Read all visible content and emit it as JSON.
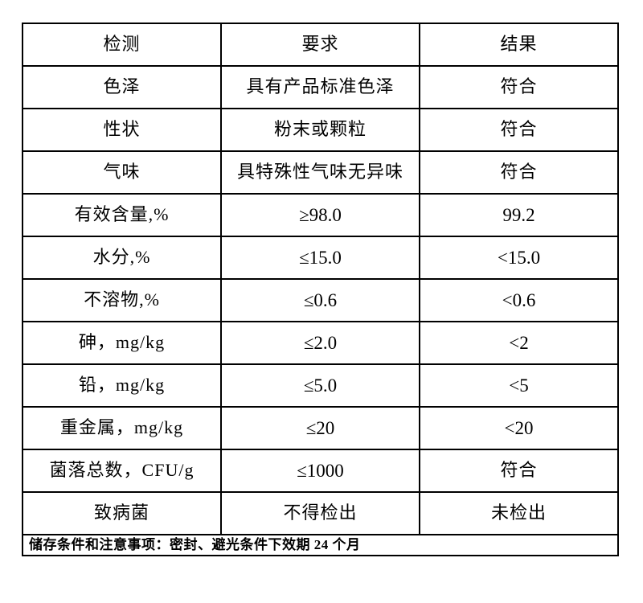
{
  "table": {
    "headers": [
      "检测",
      "要求",
      "结果"
    ],
    "rows": [
      {
        "test": "色泽",
        "requirement": "具有产品标准色泽",
        "result": "符合"
      },
      {
        "test": "性状",
        "requirement": "粉末或颗粒",
        "result": "符合"
      },
      {
        "test": "气味",
        "requirement": "具特殊性气味无异味",
        "result": "符合"
      },
      {
        "test": "有效含量,%",
        "requirement": "≥98.0",
        "result": "99.2"
      },
      {
        "test": "水分,%",
        "requirement": "≤15.0",
        "result": "<15.0"
      },
      {
        "test": "不溶物,%",
        "requirement": "≤0.6",
        "result": "<0.6"
      },
      {
        "test": "砷，mg/kg",
        "requirement": "≤2.0",
        "result": "<2"
      },
      {
        "test": "铅，mg/kg",
        "requirement": "≤5.0",
        "result": "<5"
      },
      {
        "test": "重金属，mg/kg",
        "requirement": "≤20",
        "result": "<20"
      },
      {
        "test": "菌落总数，CFU/g",
        "requirement": "≤1000",
        "result": "符合"
      },
      {
        "test": "致病菌",
        "requirement": "不得检出",
        "result": "未检出"
      }
    ],
    "footer": "储存条件和注意事项：密封、避光条件下效期 24 个月",
    "border_color": "#000000",
    "background_color": "#ffffff"
  }
}
